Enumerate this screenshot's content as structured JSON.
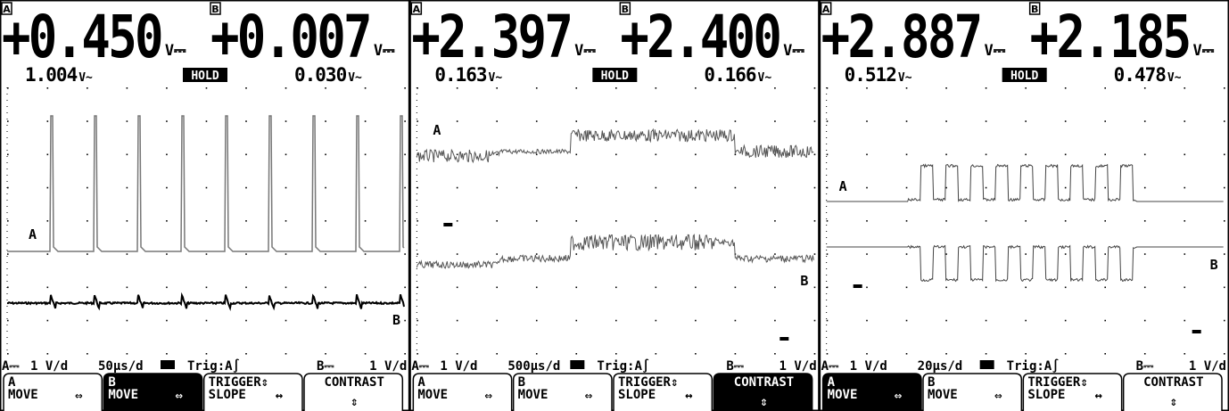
{
  "panels": [
    {
      "reading_a": {
        "channel": "A",
        "value": "+0.450",
        "unit": "V⎓",
        "ac": "1.004",
        "ac_unit": "V~"
      },
      "reading_b": {
        "channel": "B",
        "value": "+0.007",
        "unit": "V⎓",
        "ac": "0.030",
        "ac_unit": "V~"
      },
      "hold": "HOLD",
      "trace_a": "A",
      "trace_b": "B",
      "status": [
        "A⎓",
        "1 V/d",
        "50µs/d",
        "Trig:A∫",
        "B⎓",
        "1 V/d"
      ],
      "buttons": [
        {
          "lines": [
            "A",
            "MOVE"
          ],
          "icon": "⇔",
          "active": false
        },
        {
          "lines": [
            "B",
            "MOVE"
          ],
          "icon": "⇔",
          "active": true
        },
        {
          "lines": [
            "TRIGGER⇕",
            "SLOPE"
          ],
          "icon": "↔",
          "active": false
        },
        {
          "lines": [
            "CONTRAST"
          ],
          "icon": "⇕",
          "active": false
        }
      ]
    },
    {
      "reading_a": {
        "channel": "A",
        "value": "+2.397",
        "unit": "V⎓",
        "ac": "0.163",
        "ac_unit": "V~"
      },
      "reading_b": {
        "channel": "B",
        "value": "+2.400",
        "unit": "V⎓",
        "ac": "0.166",
        "ac_unit": "V~"
      },
      "hold": "HOLD",
      "trace_a": "A",
      "trace_b": "B",
      "status": [
        "A⎓",
        "1 V/d",
        "500µs/d",
        "Trig:A∫",
        "B⎓",
        "1 V/d"
      ],
      "buttons": [
        {
          "lines": [
            "A",
            "MOVE"
          ],
          "icon": "⇔",
          "active": false
        },
        {
          "lines": [
            "B",
            "MOVE"
          ],
          "icon": "⇔",
          "active": false
        },
        {
          "lines": [
            "TRIGGER⇕",
            "SLOPE"
          ],
          "icon": "↔",
          "active": false
        },
        {
          "lines": [
            "CONTRAST"
          ],
          "icon": "⇕",
          "active": true
        }
      ]
    },
    {
      "reading_a": {
        "channel": "A",
        "value": "+2.887",
        "unit": "V⎓",
        "ac": "0.512",
        "ac_unit": "V~"
      },
      "reading_b": {
        "channel": "B",
        "value": "+2.185",
        "unit": "V⎓",
        "ac": "0.478",
        "ac_unit": "V~"
      },
      "hold": "HOLD",
      "trace_a": "A",
      "trace_b": "B",
      "status": [
        "A⎓",
        "1 V/d",
        "20µs/d",
        "Trig:A∫",
        "B⎓",
        "1 V/d"
      ],
      "buttons": [
        {
          "lines": [
            "A",
            "MOVE"
          ],
          "icon": "⇔",
          "active": true
        },
        {
          "lines": [
            "B",
            "MOVE"
          ],
          "icon": "⇔",
          "active": false
        },
        {
          "lines": [
            "TRIGGER⇕",
            "SLOPE"
          ],
          "icon": "↔",
          "active": false
        },
        {
          "lines": [
            "CONTRAST"
          ],
          "icon": "⇕",
          "active": false
        }
      ]
    }
  ]
}
